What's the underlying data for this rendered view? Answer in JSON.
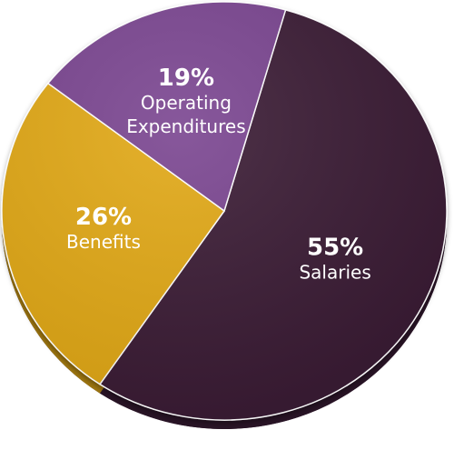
{
  "chart_data": {
    "type": "pie",
    "categories": [
      "Salaries",
      "Benefits",
      "Operating Expenditures"
    ],
    "values": [
      55,
      26,
      19
    ],
    "value_labels": [
      "55%",
      "26%",
      "19%"
    ],
    "colors": {
      "Salaries": "#3a1c36",
      "Benefits": "#e1a817",
      "Operating Expenditures": "#7a4590"
    },
    "title": "",
    "legend": "none",
    "labels_on_slices": true,
    "style": "3d-tilted"
  }
}
